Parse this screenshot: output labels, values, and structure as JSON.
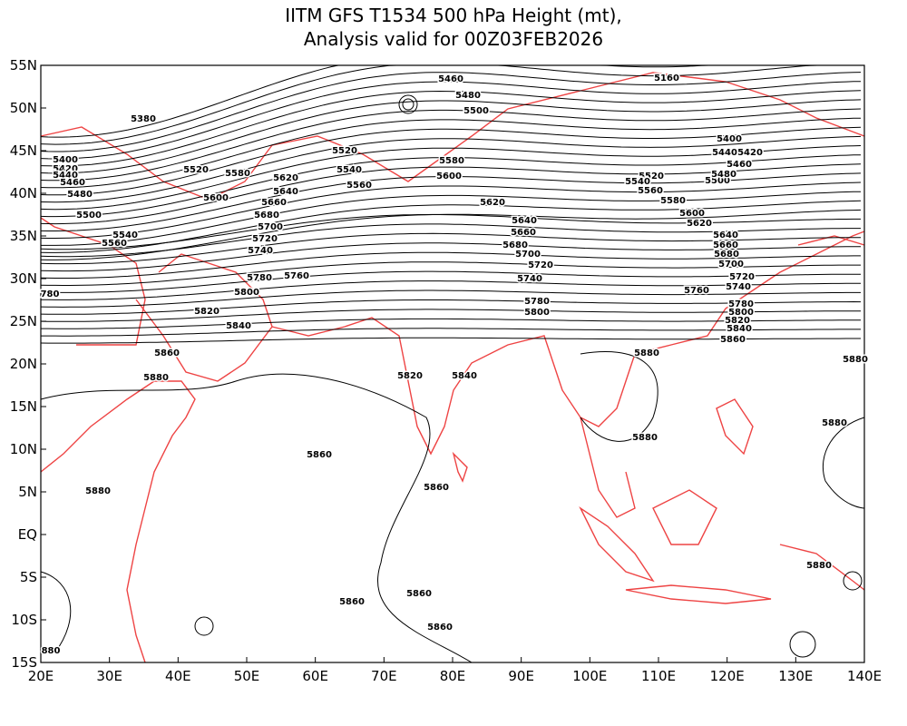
{
  "title": "IITM GFS T1534 500 hPa Height (mt),",
  "subtitle": "Analysis valid for 00Z03FEB2026",
  "lon_ticks": [
    {
      "value": 20,
      "label": "20E"
    },
    {
      "value": 30,
      "label": "30E"
    },
    {
      "value": 40,
      "label": "40E"
    },
    {
      "value": 50,
      "label": "50E"
    },
    {
      "value": 60,
      "label": "60E"
    },
    {
      "value": 70,
      "label": "70E"
    },
    {
      "value": 80,
      "label": "80E"
    },
    {
      "value": 90,
      "label": "90E"
    },
    {
      "value": 100,
      "label": "100E"
    },
    {
      "value": 110,
      "label": "110E"
    },
    {
      "value": 120,
      "label": "120E"
    },
    {
      "value": 130,
      "label": "130E"
    },
    {
      "value": 140,
      "label": "140E"
    }
  ],
  "lat_ticks": [
    {
      "value": 55,
      "label": "55N"
    },
    {
      "value": 50,
      "label": "50N"
    },
    {
      "value": 45,
      "label": "45N"
    },
    {
      "value": 40,
      "label": "40N"
    },
    {
      "value": 35,
      "label": "35N"
    },
    {
      "value": 30,
      "label": "30N"
    },
    {
      "value": 25,
      "label": "25N"
    },
    {
      "value": 20,
      "label": "20N"
    },
    {
      "value": 15,
      "label": "15N"
    },
    {
      "value": 10,
      "label": "10N"
    },
    {
      "value": 5,
      "label": "5N"
    },
    {
      "value": 0,
      "label": "EQ"
    },
    {
      "value": -5,
      "label": "5S"
    },
    {
      "value": -10,
      "label": "10S"
    },
    {
      "value": -15,
      "label": "15S"
    }
  ],
  "contour_labels": [
    "5460",
    "5480",
    "5500",
    "5380",
    "5520",
    "5540",
    "5560",
    "5580",
    "5600",
    "5400",
    "5420",
    "5440",
    "5460",
    "5480",
    "5500",
    "5540",
    "5560",
    "5520",
    "5580",
    "5600",
    "5620",
    "5640",
    "5660",
    "5680",
    "5700",
    "5720",
    "5740",
    "5780",
    "5760",
    "5800",
    "5820",
    "5840",
    "780",
    "5860",
    "5880",
    "5620",
    "5640",
    "5660",
    "5680",
    "5700",
    "5720",
    "5740",
    "5780",
    "5800",
    "5820",
    "5840",
    "5160",
    "5880",
    "5880",
    "5880",
    "5880",
    "5860",
    "5860",
    "5880",
    "5860",
    "5860",
    "5860",
    "880",
    "5880",
    "5520",
    "5540",
    "5560",
    "5580",
    "5600",
    "5620",
    "5500",
    "5480",
    "5460",
    "5440",
    "5420",
    "5400",
    "5640",
    "5660",
    "5680",
    "5700",
    "5720",
    "5740",
    "5760",
    "5780",
    "5800",
    "5820",
    "5840",
    "5860"
  ]
}
